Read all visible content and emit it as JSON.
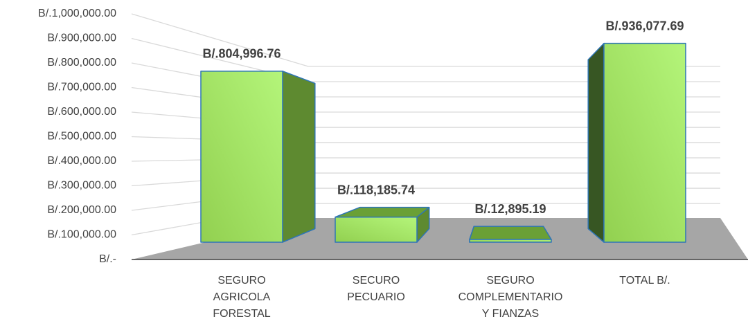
{
  "chart_data": {
    "type": "bar3d",
    "categories": [
      "SEGURO\nAGRICOLA\nFORESTAL",
      "SECURO\nPECUARIO",
      "SEGURO\nCOMPLEMENTARIO\nY FIANZAS",
      "TOTAL B/."
    ],
    "values": [
      804996.76,
      118185.74,
      12895.19,
      936077.69
    ],
    "value_labels": [
      "B/.804,996.76",
      "B/.118,185.74",
      "B/.12,895.19",
      "B/.936,077.69"
    ],
    "ylim": [
      0,
      1000000
    ],
    "yticks": [
      {
        "value": 0,
        "label": "B/.-"
      },
      {
        "value": 100000,
        "label": "B/.100,000.00"
      },
      {
        "value": 200000,
        "label": "B/.200,000.00"
      },
      {
        "value": 300000,
        "label": "B/.300,000.00"
      },
      {
        "value": 400000,
        "label": "B/.400,000.00"
      },
      {
        "value": 500000,
        "label": "B/.500,000.00"
      },
      {
        "value": 600000,
        "label": "B/.600,000.00"
      },
      {
        "value": 700000,
        "label": "B/.700,000.00"
      },
      {
        "value": 800000,
        "label": "B/.800,000.00"
      },
      {
        "value": 900000,
        "label": "B/.900,000.00"
      },
      {
        "value": 1000000,
        "label": "B/.1,000,000.00"
      }
    ],
    "grid": true,
    "color": "#92d050"
  }
}
